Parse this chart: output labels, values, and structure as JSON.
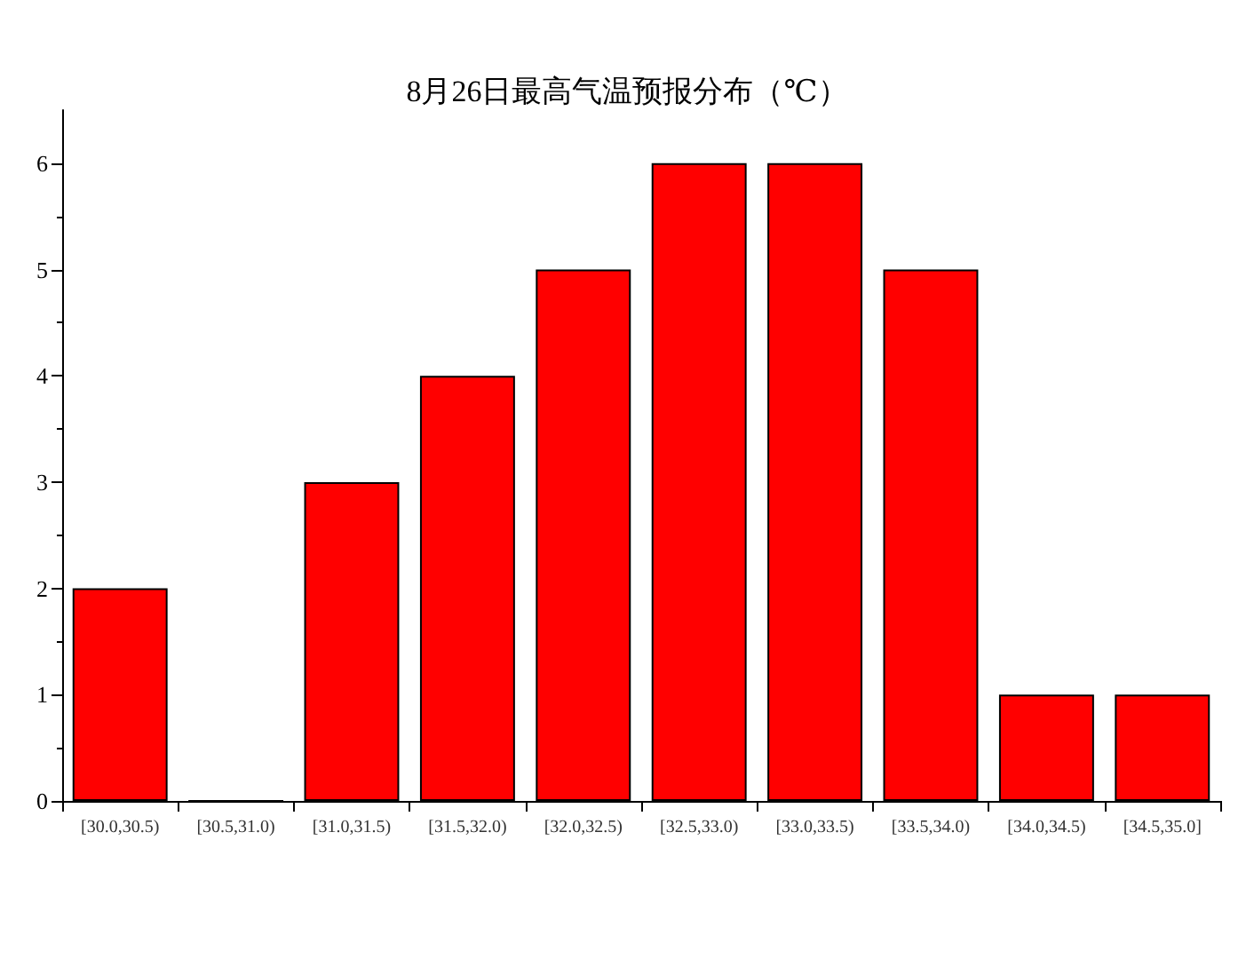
{
  "chart_data": {
    "type": "bar",
    "title": "8月26日最高气温预报分布（℃）",
    "categories": [
      "[30.0,30.5)",
      "[30.5,31.0)",
      "[31.0,31.5)",
      "[31.5,32.0)",
      "[32.0,32.5)",
      "[32.5,33.0)",
      "[33.0,33.5)",
      "[33.5,34.0)",
      "[34.0,34.5)",
      "[34.5,35.0]"
    ],
    "values": [
      2,
      0,
      3,
      4,
      5,
      6,
      6,
      5,
      1,
      1
    ],
    "color": "#ff0000",
    "ylim": [
      0,
      6.5
    ],
    "yticks": [
      0,
      1,
      2,
      3,
      4,
      5,
      6
    ],
    "grid": false
  }
}
